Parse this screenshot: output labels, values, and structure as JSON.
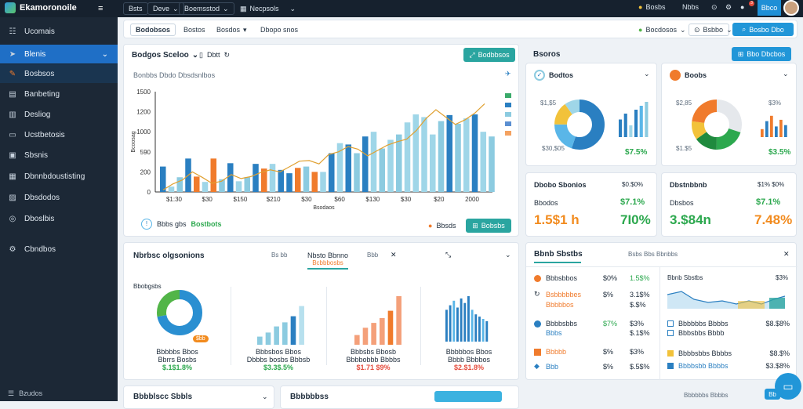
{
  "topbar": {
    "app_title": "Ekamoronoile",
    "menu_icon": "hamburger-icon",
    "tabs": [
      "Bsts",
      "Deve",
      "Boemsstod",
      "Necpsols"
    ],
    "right_items": [
      "Bosbs",
      "Nbbs"
    ],
    "notif_count": "3",
    "action_label": "Bbco"
  },
  "sidebar": {
    "items": [
      {
        "icon": "grid-icon",
        "label": "Ucomais"
      },
      {
        "icon": "navigate-icon",
        "label": "Blenis"
      },
      {
        "icon": "pencil-icon",
        "label": "Bosbsos"
      },
      {
        "icon": "document-icon",
        "label": "Banbeting"
      },
      {
        "icon": "chart-icon",
        "label": "Desliog"
      },
      {
        "icon": "chat-icon",
        "label": "Ucstbetosis"
      },
      {
        "icon": "list-icon",
        "label": "Sbsnis"
      },
      {
        "icon": "file-icon",
        "label": "Dbnnbdoustisting"
      },
      {
        "icon": "folder-icon",
        "label": "Dbsdodos"
      },
      {
        "icon": "settings-icon",
        "label": "Dboslbis"
      },
      {
        "icon": "gear-icon",
        "label": "Cbndbos"
      }
    ],
    "footer": "Bzudos"
  },
  "subbar": {
    "items": [
      "Bodobsos",
      "Bostos",
      "Bosdos",
      "Dbopo snos"
    ],
    "status": "Bocdosos",
    "filter": "Bsbbo",
    "primary": "Bosbo Dbo"
  },
  "main_chart": {
    "title": "Bodgos Sceloo",
    "tab": "Dbtt",
    "subtitle": "Bonbbs Dbdo Dbsdsnlbos",
    "action": "Bodbbsos",
    "footer_left": "Bbbs gbs",
    "footer_left_highlight": "Bostbots",
    "footer_status": "Bbsds",
    "footer_button": "Bobsbs"
  },
  "chart_data": {
    "type": "bar",
    "ylabel": "Bcoosag",
    "xlabel": "Bsodaos",
    "x_ticks": [
      "$1:30",
      "$30",
      "$150",
      "$210",
      "$30",
      "$60",
      "$130",
      "$30",
      "$20",
      "2000"
    ],
    "y_ticks": [
      "1500",
      "1200",
      "1000",
      "590",
      "200",
      "0"
    ],
    "ylim": [
      0,
      1500
    ],
    "bars": [
      {
        "value": 380,
        "color": "#2a7fc1"
      },
      {
        "value": 80,
        "color": "#9fd6e8"
      },
      {
        "value": 220,
        "color": "#8ccbe0"
      },
      {
        "value": 500,
        "color": "#2a7fc1"
      },
      {
        "value": 230,
        "color": "#f07b2c"
      },
      {
        "value": 150,
        "color": "#9fd6e8"
      },
      {
        "value": 500,
        "color": "#f07b2c"
      },
      {
        "value": 190,
        "color": "#8ccbe0"
      },
      {
        "value": 430,
        "color": "#2a7fc1"
      },
      {
        "value": 160,
        "color": "#9fd6e8"
      },
      {
        "value": 220,
        "color": "#8ccbe0"
      },
      {
        "value": 420,
        "color": "#2a7fc1"
      },
      {
        "value": 350,
        "color": "#f07b2c"
      },
      {
        "value": 420,
        "color": "#9fd6e8"
      },
      {
        "value": 330,
        "color": "#2a7fc1"
      },
      {
        "value": 280,
        "color": "#2a7fc1"
      },
      {
        "value": 360,
        "color": "#f07b2c"
      },
      {
        "value": 380,
        "color": "#8ccbe0"
      },
      {
        "value": 300,
        "color": "#f07b2c"
      },
      {
        "value": 300,
        "color": "#9fd6e8"
      },
      {
        "value": 580,
        "color": "#2a7fc1"
      },
      {
        "value": 730,
        "color": "#9fd6e8"
      },
      {
        "value": 710,
        "color": "#2a7fc1"
      },
      {
        "value": 580,
        "color": "#8ccbe0"
      },
      {
        "value": 830,
        "color": "#2a7fc1"
      },
      {
        "value": 900,
        "color": "#9fd6e8"
      },
      {
        "value": 650,
        "color": "#8ccbe0"
      },
      {
        "value": 780,
        "color": "#9fd6e8"
      },
      {
        "value": 860,
        "color": "#8ccbe0"
      },
      {
        "value": 1040,
        "color": "#9fd6e8"
      },
      {
        "value": 1160,
        "color": "#9fd6e8"
      },
      {
        "value": 1120,
        "color": "#9fd6e8"
      },
      {
        "value": 860,
        "color": "#9fd6e8"
      },
      {
        "value": 1060,
        "color": "#8ccbe0"
      },
      {
        "value": 1150,
        "color": "#2a7fc1"
      },
      {
        "value": 1020,
        "color": "#8ccbe0"
      },
      {
        "value": 1100,
        "color": "#9fd6e8"
      },
      {
        "value": 1160,
        "color": "#2a7fc1"
      },
      {
        "value": 900,
        "color": "#9fd6e8"
      },
      {
        "value": 830,
        "color": "#8ccbe0"
      }
    ],
    "line": [
      30,
      120,
      180,
      300,
      220,
      130,
      160,
      260,
      200,
      230,
      290,
      330,
      300,
      380,
      460,
      470,
      420,
      560,
      600,
      680,
      640,
      540,
      620,
      700,
      750,
      790,
      920,
      1100,
      1230,
      1120,
      1010,
      1080,
      1180,
      1320
    ],
    "legend_colors": [
      "#3aaa6a",
      "#2a7fc1",
      "#8ccbe0",
      "#5b8fd1",
      "#f4a261"
    ]
  },
  "right_top": {
    "title": "Bsoros",
    "button": "Bbo Dbcbos",
    "donut1": {
      "title": "Bodtos",
      "left_top": "$1,$5",
      "left_bottom": "$30,$05",
      "value": "$7.5%",
      "segments": [
        {
          "value": 55,
          "color": "#2a7fc1"
        },
        {
          "value": 20,
          "color": "#5ab6e8"
        },
        {
          "value": 15,
          "color": "#f2c23a"
        },
        {
          "value": 10,
          "color": "#9fd6e8"
        }
      ],
      "bars": [
        {
          "value": 45,
          "color": "#2a7fc1"
        },
        {
          "value": 60,
          "color": "#2a7fc1"
        },
        {
          "value": 30,
          "color": "#9fd6e8"
        },
        {
          "value": 70,
          "color": "#2a7fc1"
        },
        {
          "value": 80,
          "color": "#5ab6e8"
        },
        {
          "value": 90,
          "color": "#8ccbe0"
        }
      ]
    },
    "donut2": {
      "title": "Boobs",
      "left_top": "$2,85",
      "left_bottom": "$1.$5",
      "right_top": "$3%",
      "value": "$3.5%",
      "segments": [
        {
          "value": 30,
          "color": "#e5e8ec"
        },
        {
          "value": 20,
          "color": "#2ca84e"
        },
        {
          "value": 15,
          "color": "#1f8a3e"
        },
        {
          "value": 12,
          "color": "#f2c23a"
        },
        {
          "value": 23,
          "color": "#f07b2c"
        }
      ],
      "bars": [
        {
          "value": 30,
          "color": "#f07b2c"
        },
        {
          "value": 60,
          "color": "#2a7fc1"
        },
        {
          "value": 80,
          "color": "#f07b2c"
        },
        {
          "value": 40,
          "color": "#2a7fc1"
        },
        {
          "value": 65,
          "color": "#f07b2c"
        },
        {
          "value": 45,
          "color": "#2a7fc1"
        }
      ]
    }
  },
  "stats": [
    {
      "title": "Dbobo Sbonios",
      "tag": "$0.$0%",
      "label": "Bbodos",
      "pct": "$7.1%",
      "big": "1.5$1 h",
      "big_right": "7I0%"
    },
    {
      "title": "Dbstnbbnb",
      "tag": "$1% $0%",
      "label": "Dbsbos",
      "pct": "$7.1%",
      "big": "3.$84n",
      "big_right": "7.48%"
    }
  ],
  "mid_panel": {
    "title": "Nbrbsc olgsonions",
    "tab1": "Bs bb",
    "tab2": "Nbsto Bbnno",
    "tab2_sub": "Bcbbbosbs",
    "tab3": "Bbb",
    "subtitle": "Bbobgsbs",
    "cards": [
      {
        "label": "Bbbbbs Bbos",
        "sub": "Bbrrs Bosbs",
        "value": "$.1$1.8%",
        "tag": "$bb"
      },
      {
        "label": "Bbbsbos Bbos",
        "sub": "Dbbbs bosbs Bbbsb",
        "value": "$3.3$.5%"
      },
      {
        "label": "Bbbsbs Bbosb",
        "sub": "Bbbbobbb Bbbbs",
        "value": "$1.71 $9%"
      },
      {
        "label": "Bbbbbos Bbos",
        "sub": "Bbbb Bbbbos",
        "value": "$2.$1.8%"
      }
    ],
    "card_bars": [
      [],
      [
        {
          "value": 20,
          "color": "#8ccbe0"
        },
        {
          "value": 30,
          "color": "#8ccbe0"
        },
        {
          "value": 45,
          "color": "#8ccbe0"
        },
        {
          "value": 55,
          "color": "#8ccbe0"
        },
        {
          "value": 70,
          "color": "#2a7fc1"
        },
        {
          "value": 95,
          "color": "#b7e0ee"
        }
      ],
      [
        {
          "value": 20,
          "color": "#f4a07a"
        },
        {
          "value": 35,
          "color": "#f4a07a"
        },
        {
          "value": 45,
          "color": "#f4a07a"
        },
        {
          "value": 55,
          "color": "#f4a07a"
        },
        {
          "value": 70,
          "color": "#f07b2c"
        },
        {
          "value": 100,
          "color": "#f4a07a"
        }
      ],
      [
        {
          "value": 70,
          "color": "#2a7fc1"
        },
        {
          "value": 80,
          "color": "#2a7fc1"
        },
        {
          "value": 90,
          "color": "#5ab6e8"
        },
        {
          "value": 75,
          "color": "#2a7fc1"
        },
        {
          "value": 95,
          "color": "#2a7fc1"
        },
        {
          "value": 85,
          "color": "#2a7fc1"
        },
        {
          "value": 100,
          "color": "#2a7fc1"
        },
        {
          "value": 70,
          "color": "#5ab6e8"
        },
        {
          "value": 60,
          "color": "#2a7fc1"
        },
        {
          "value": 55,
          "color": "#2a7fc1"
        },
        {
          "value": 50,
          "color": "#5ab6e8"
        },
        {
          "value": 45,
          "color": "#2a7fc1"
        }
      ]
    ],
    "donut": [
      {
        "value": 72,
        "color": "#2a8fd1"
      },
      {
        "value": 28,
        "color": "#52b548"
      }
    ]
  },
  "list_panel": {
    "title": "Bbnb Sbstbs",
    "header": "Bsbs Bbs Bbnbbs",
    "rows": [
      {
        "icon": "circle-icon",
        "label": "Bbbsbbos",
        "a": "$0%",
        "b": "1.5$%"
      },
      {
        "icon": "refresh-icon",
        "label": "Bsbbbbbes",
        "a": "$%",
        "b": "3.1$%"
      },
      {
        "icon": "",
        "label": "Bbbbbos",
        "a": "",
        "b": "$.$%"
      },
      {
        "icon": "circle-icon",
        "label": "Bbbbsbbs",
        "a": "$7%",
        "b": "$3%"
      },
      {
        "icon": "",
        "label": "Bbbs",
        "a": "",
        "b": "$.1$%"
      },
      {
        "icon": "square-icon",
        "label": "Bbbbb",
        "a": "$%",
        "b": "$3%"
      },
      {
        "icon": "gamepad-icon",
        "label": "Bbb",
        "a": "$%",
        "b": "$.5$%"
      }
    ],
    "spark_title": "Bbnb Sbstbs",
    "spark_value": "$3%",
    "right_rows": [
      {
        "icon": "square-icon",
        "label": "Bbbbbbs Bbbbs",
        "value": "$8.$8%"
      },
      {
        "icon": "square-icon",
        "label": "Bbbsbbs Bbbb",
        "value": ""
      },
      {
        "icon": "square-icon",
        "label": "Bbbbsbbs Bbbbs",
        "value": "$8.$%"
      },
      {
        "icon": "square-icon",
        "label": "Bbbbsbb Bbbbs",
        "value": "$3.$8%"
      }
    ]
  },
  "bottom": {
    "card1": "Bbbblscc Sbbls",
    "card2": "Bbbbbbss",
    "right_text": "Bbbbbbs Bbbbs",
    "right_btn": "Bb"
  }
}
